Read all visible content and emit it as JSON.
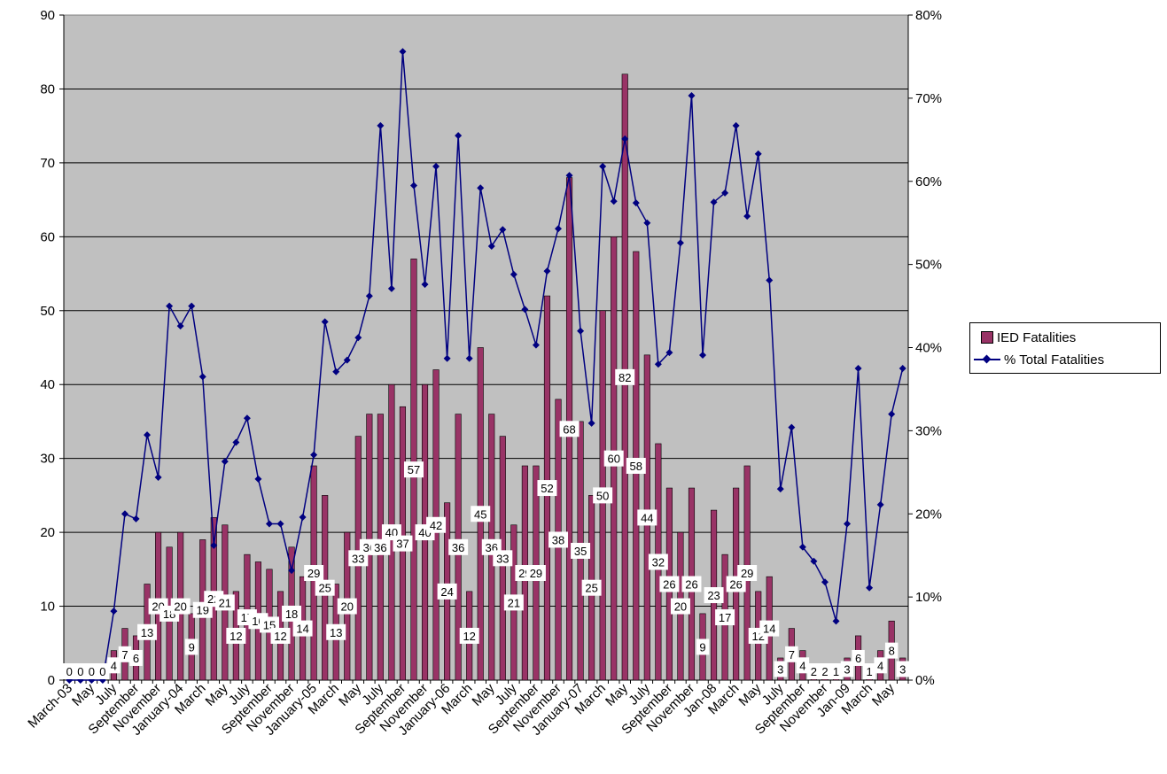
{
  "chart_data": {
    "type": "bar",
    "categories": [
      "March-03",
      "April",
      "May",
      "June",
      "July",
      "August",
      "September",
      "October",
      "November",
      "December",
      "January-04",
      "February",
      "March",
      "April",
      "May",
      "June",
      "July",
      "August",
      "September",
      "October",
      "November",
      "December",
      "January-05",
      "February",
      "March",
      "April",
      "May",
      "June",
      "July",
      "August",
      "September",
      "October",
      "November",
      "December",
      "January-06",
      "February",
      "March",
      "April",
      "May",
      "June",
      "July",
      "August",
      "September",
      "October",
      "November",
      "December",
      "January-07",
      "February",
      "March",
      "April",
      "May",
      "June",
      "July",
      "August",
      "September",
      "October",
      "November",
      "December",
      "Jan-08",
      "February",
      "March",
      "April",
      "May",
      "June",
      "July",
      "August",
      "September",
      "October",
      "November",
      "December",
      "Jan-09",
      "February",
      "March",
      "April",
      "May",
      "June"
    ],
    "shown_tick_labels": [
      "March-03",
      "May",
      "July",
      "September",
      "November",
      "January-04",
      "March",
      "May",
      "July",
      "September",
      "November",
      "January-05",
      "March",
      "May",
      "July",
      "September",
      "November",
      "January-06",
      "March",
      "May",
      "July",
      "September",
      "November",
      "January-07",
      "March",
      "May",
      "July",
      "September",
      "November",
      "Jan-08",
      "March",
      "May",
      "July",
      "September",
      "November",
      "Jan-09",
      "March",
      "May"
    ],
    "series": [
      {
        "name": "IED Fatalities",
        "type": "bar",
        "axis": "left",
        "color": "#993366",
        "values": [
          0,
          0,
          0,
          0,
          4,
          7,
          6,
          13,
          20,
          18,
          20,
          9,
          19,
          22,
          21,
          12,
          17,
          16,
          15,
          12,
          18,
          14,
          29,
          25,
          13,
          20,
          33,
          36,
          36,
          40,
          37,
          57,
          40,
          42,
          24,
          36,
          12,
          45,
          36,
          33,
          21,
          29,
          29,
          52,
          38,
          68,
          35,
          25,
          50,
          60,
          82,
          58,
          44,
          32,
          26,
          20,
          26,
          9,
          23,
          17,
          26,
          29,
          12,
          14,
          3,
          7,
          4,
          2,
          2,
          1,
          3,
          6,
          1,
          4,
          8,
          3
        ]
      },
      {
        "name": "% Total Fatalities",
        "type": "line",
        "axis": "right",
        "color": "#000080",
        "values": [
          0,
          0,
          0,
          0,
          8.3,
          20,
          19.4,
          29.5,
          24.4,
          45,
          42.6,
          45,
          36.5,
          16.2,
          26.3,
          28.6,
          31.5,
          24.2,
          18.8,
          18.8,
          13.2,
          19.6,
          27.1,
          43.1,
          37.1,
          38.5,
          41.2,
          46.2,
          66.7,
          47.1,
          75.6,
          59.5,
          47.6,
          61.8,
          38.7,
          65.5,
          38.7,
          59.2,
          52.2,
          54.2,
          48.8,
          44.6,
          40.3,
          49.2,
          54.3,
          60.7,
          42,
          30.9,
          61.8,
          57.6,
          65.1,
          57.4,
          55,
          38,
          39.4,
          52.6,
          70.3,
          39.1,
          57.5,
          58.6,
          66.7,
          55.8,
          63.3,
          48.1,
          23,
          30.4,
          16,
          14.3,
          11.8,
          7.1,
          18.8,
          37.5,
          11.1,
          21.1,
          32,
          37.5
        ]
      }
    ],
    "y_left": {
      "min": 0,
      "max": 90,
      "ticks": [
        "0",
        "10",
        "20",
        "30",
        "40",
        "50",
        "60",
        "70",
        "80",
        "90"
      ]
    },
    "y_right": {
      "min": 0,
      "max": 80,
      "ticks": [
        "0%",
        "10%",
        "20%",
        "30%",
        "40%",
        "50%",
        "60%",
        "70%",
        "80%"
      ]
    },
    "grid": true,
    "plot_background": "#c0c0c0",
    "legend_placement": "right",
    "data_labels": "bar values",
    "title": "",
    "xlabel": "",
    "ylabel": ""
  },
  "legend": {
    "items": [
      {
        "label": "IED Fatalities",
        "swatch": "bar"
      },
      {
        "label": "% Total Fatalities",
        "swatch": "line"
      }
    ]
  }
}
